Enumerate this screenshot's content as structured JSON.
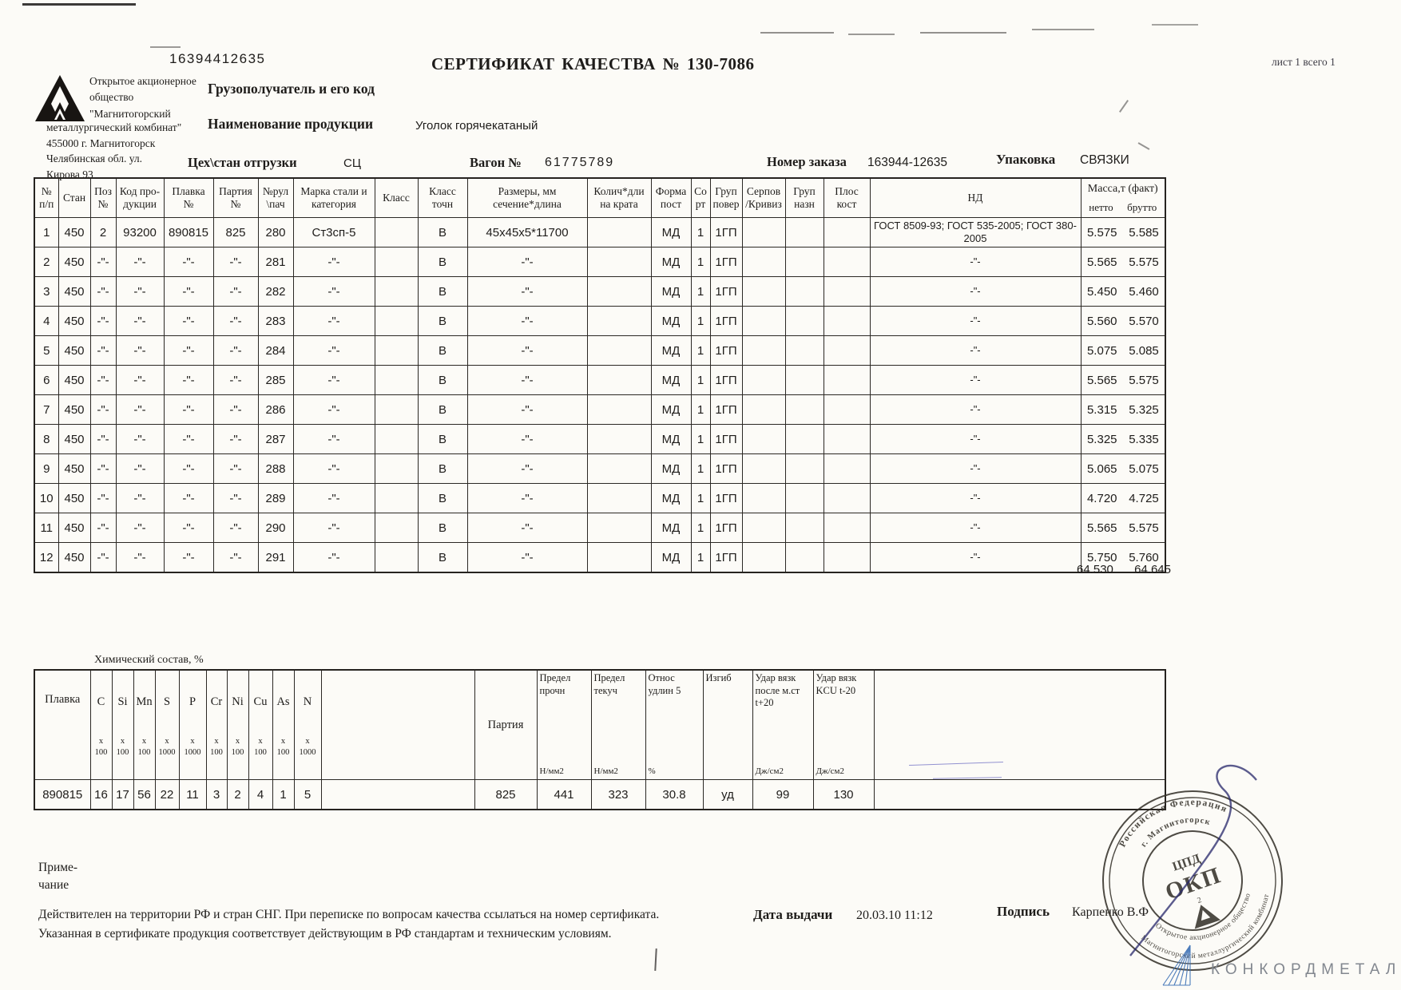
{
  "header": {
    "doc_number": "16394412635",
    "title": "СЕРТИФИКАТ КАЧЕСТВА  № 130-7086",
    "sheet_info": "лист 1 всего 1",
    "company_top": "Открытое акционерное\nобщество\n\"Магнитогорский",
    "company_bottom": "металлургический комбинат\"\n455000 г. Магнитогорск\nЧелябинская обл.  ул.\nКирова 93",
    "consignee_label": "Грузополучатель и его код",
    "product_label": "Наименование продукции",
    "product_value": "Уголок горячекатаный",
    "shipping_label": "Цех\\стан отгрузки",
    "shipping_value": "СЦ",
    "wagon_label": "Вагон №",
    "wagon_value": "61775789",
    "order_label": "Номер заказа",
    "order_value": "163944-12635",
    "packing_label": "Упаковка",
    "packing_value": "СВЯЗКИ"
  },
  "main_table": {
    "headers": [
      "№\nп/п",
      "Стан",
      "Поз\n№",
      "Код про-\nдукции",
      "Плавка\n№",
      "Партия\n№",
      "№рул\n\\пач",
      "Марка стали и\nкатегория",
      "Класс",
      "Класс\nточн",
      "Размеры, мм\nсечение*длина",
      "Колич*дли\nна крата",
      "Форма\nпост",
      "Со\nрт",
      "Груп\nповер",
      "Серпов\n/Кривиз",
      "Груп\nназн",
      "Плос\nкост",
      "НД"
    ],
    "mass_header": {
      "title": "Масса,т (факт)",
      "netto": "нетто",
      "brutto": "брутто"
    },
    "rows": [
      [
        "1",
        "450",
        "2",
        "93200",
        "890815",
        "825",
        "280",
        "Ст3сп-5",
        "",
        "В",
        "45х45х5*11700",
        "",
        "МД",
        "1",
        "1ГП",
        "",
        "",
        "",
        "ГОСТ 8509-93; ГОСТ 535-2005; ГОСТ 380-2005",
        "5.575",
        "5.585"
      ],
      [
        "2",
        "450",
        "-\"-",
        "-\"-",
        "-\"-",
        "-\"-",
        "281",
        "-\"-",
        "",
        "В",
        "-\"-",
        "",
        "МД",
        "1",
        "1ГП",
        "",
        "",
        "",
        "-\"-",
        "5.565",
        "5.575"
      ],
      [
        "3",
        "450",
        "-\"-",
        "-\"-",
        "-\"-",
        "-\"-",
        "282",
        "-\"-",
        "",
        "В",
        "-\"-",
        "",
        "МД",
        "1",
        "1ГП",
        "",
        "",
        "",
        "-\"-",
        "5.450",
        "5.460"
      ],
      [
        "4",
        "450",
        "-\"-",
        "-\"-",
        "-\"-",
        "-\"-",
        "283",
        "-\"-",
        "",
        "В",
        "-\"-",
        "",
        "МД",
        "1",
        "1ГП",
        "",
        "",
        "",
        "-\"-",
        "5.560",
        "5.570"
      ],
      [
        "5",
        "450",
        "-\"-",
        "-\"-",
        "-\"-",
        "-\"-",
        "284",
        "-\"-",
        "",
        "В",
        "-\"-",
        "",
        "МД",
        "1",
        "1ГП",
        "",
        "",
        "",
        "-\"-",
        "5.075",
        "5.085"
      ],
      [
        "6",
        "450",
        "-\"-",
        "-\"-",
        "-\"-",
        "-\"-",
        "285",
        "-\"-",
        "",
        "В",
        "-\"-",
        "",
        "МД",
        "1",
        "1ГП",
        "",
        "",
        "",
        "-\"-",
        "5.565",
        "5.575"
      ],
      [
        "7",
        "450",
        "-\"-",
        "-\"-",
        "-\"-",
        "-\"-",
        "286",
        "-\"-",
        "",
        "В",
        "-\"-",
        "",
        "МД",
        "1",
        "1ГП",
        "",
        "",
        "",
        "-\"-",
        "5.315",
        "5.325"
      ],
      [
        "8",
        "450",
        "-\"-",
        "-\"-",
        "-\"-",
        "-\"-",
        "287",
        "-\"-",
        "",
        "В",
        "-\"-",
        "",
        "МД",
        "1",
        "1ГП",
        "",
        "",
        "",
        "-\"-",
        "5.325",
        "5.335"
      ],
      [
        "9",
        "450",
        "-\"-",
        "-\"-",
        "-\"-",
        "-\"-",
        "288",
        "-\"-",
        "",
        "В",
        "-\"-",
        "",
        "МД",
        "1",
        "1ГП",
        "",
        "",
        "",
        "-\"-",
        "5.065",
        "5.075"
      ],
      [
        "10",
        "450",
        "-\"-",
        "-\"-",
        "-\"-",
        "-\"-",
        "289",
        "-\"-",
        "",
        "В",
        "-\"-",
        "",
        "МД",
        "1",
        "1ГП",
        "",
        "",
        "",
        "-\"-",
        "4.720",
        "4.725"
      ],
      [
        "11",
        "450",
        "-\"-",
        "-\"-",
        "-\"-",
        "-\"-",
        "290",
        "-\"-",
        "",
        "В",
        "-\"-",
        "",
        "МД",
        "1",
        "1ГП",
        "",
        "",
        "",
        "-\"-",
        "5.565",
        "5.575"
      ],
      [
        "12",
        "450",
        "-\"-",
        "-\"-",
        "-\"-",
        "-\"-",
        "291",
        "-\"-",
        "",
        "В",
        "-\"-",
        "",
        "МД",
        "1",
        "1ГП",
        "",
        "",
        "",
        "-\"-",
        "5.750",
        "5.760"
      ]
    ],
    "total_netto": "64.530",
    "total_brutto": "64.645"
  },
  "chem_table": {
    "title": "Химический состав, %",
    "plavka_header": "Плавка",
    "elements": [
      {
        "sym": "C",
        "mult": "100"
      },
      {
        "sym": "Si",
        "mult": "100"
      },
      {
        "sym": "Mn",
        "mult": "100"
      },
      {
        "sym": "S",
        "mult": "1000"
      },
      {
        "sym": "P",
        "mult": "1000"
      },
      {
        "sym": "Cr",
        "mult": "100"
      },
      {
        "sym": "Ni",
        "mult": "100"
      },
      {
        "sym": "Cu",
        "mult": "100"
      },
      {
        "sym": "As",
        "mult": "100"
      },
      {
        "sym": "N",
        "mult": "1000"
      }
    ],
    "partiya_header": "Партия",
    "mech": [
      {
        "label": "Предел\nпрочн",
        "unit": "Н/мм2"
      },
      {
        "label": "Предел\nтекуч",
        "unit": "Н/мм2"
      },
      {
        "label": "Относ\nудлин 5",
        "unit": "%"
      },
      {
        "label": "Изгиб",
        "unit": ""
      },
      {
        "label": "Удар вязк\nпосле м.ст\nt+20",
        "unit": "Дж/см2"
      },
      {
        "label": "Удар вязк\nKCU t-20",
        "unit": "Дж/см2"
      }
    ],
    "row": {
      "plavka": "890815",
      "values": [
        "16",
        "17",
        "56",
        "22",
        "11",
        "3",
        "2",
        "4",
        "1",
        "5"
      ],
      "partiya": "825",
      "mech_values": [
        "441",
        "323",
        "30.8",
        "уд",
        "99",
        "130"
      ]
    }
  },
  "footer": {
    "note_label": "Приме-\nчание",
    "validity_text": "Действителен на территории РФ и стран СНГ. При переписке по вопросам качества ссылаться на номер сертификата.\nУказанная в сертификате продукция соответствует действующим в РФ стандартам и техническим условиям.",
    "date_label": "Дата выдачи",
    "date_value": "20.03.10 11:12",
    "sign_label": "Подпись",
    "sign_value": "Карпенко В.Ф"
  },
  "stamp": {
    "ring_top": "Российская Федерация",
    "ring_top_inner": "г. Магнитогорск",
    "ring_bottom": "Магнитогорский металлургический комбинат",
    "ring_bottom_inner": "Открытое акционерное общество",
    "center_line1": "ЦПД",
    "center_line2": "ОКП",
    "center_num": "2"
  },
  "brand": {
    "name": "КОНКОРДМЕТАЛЛ"
  }
}
